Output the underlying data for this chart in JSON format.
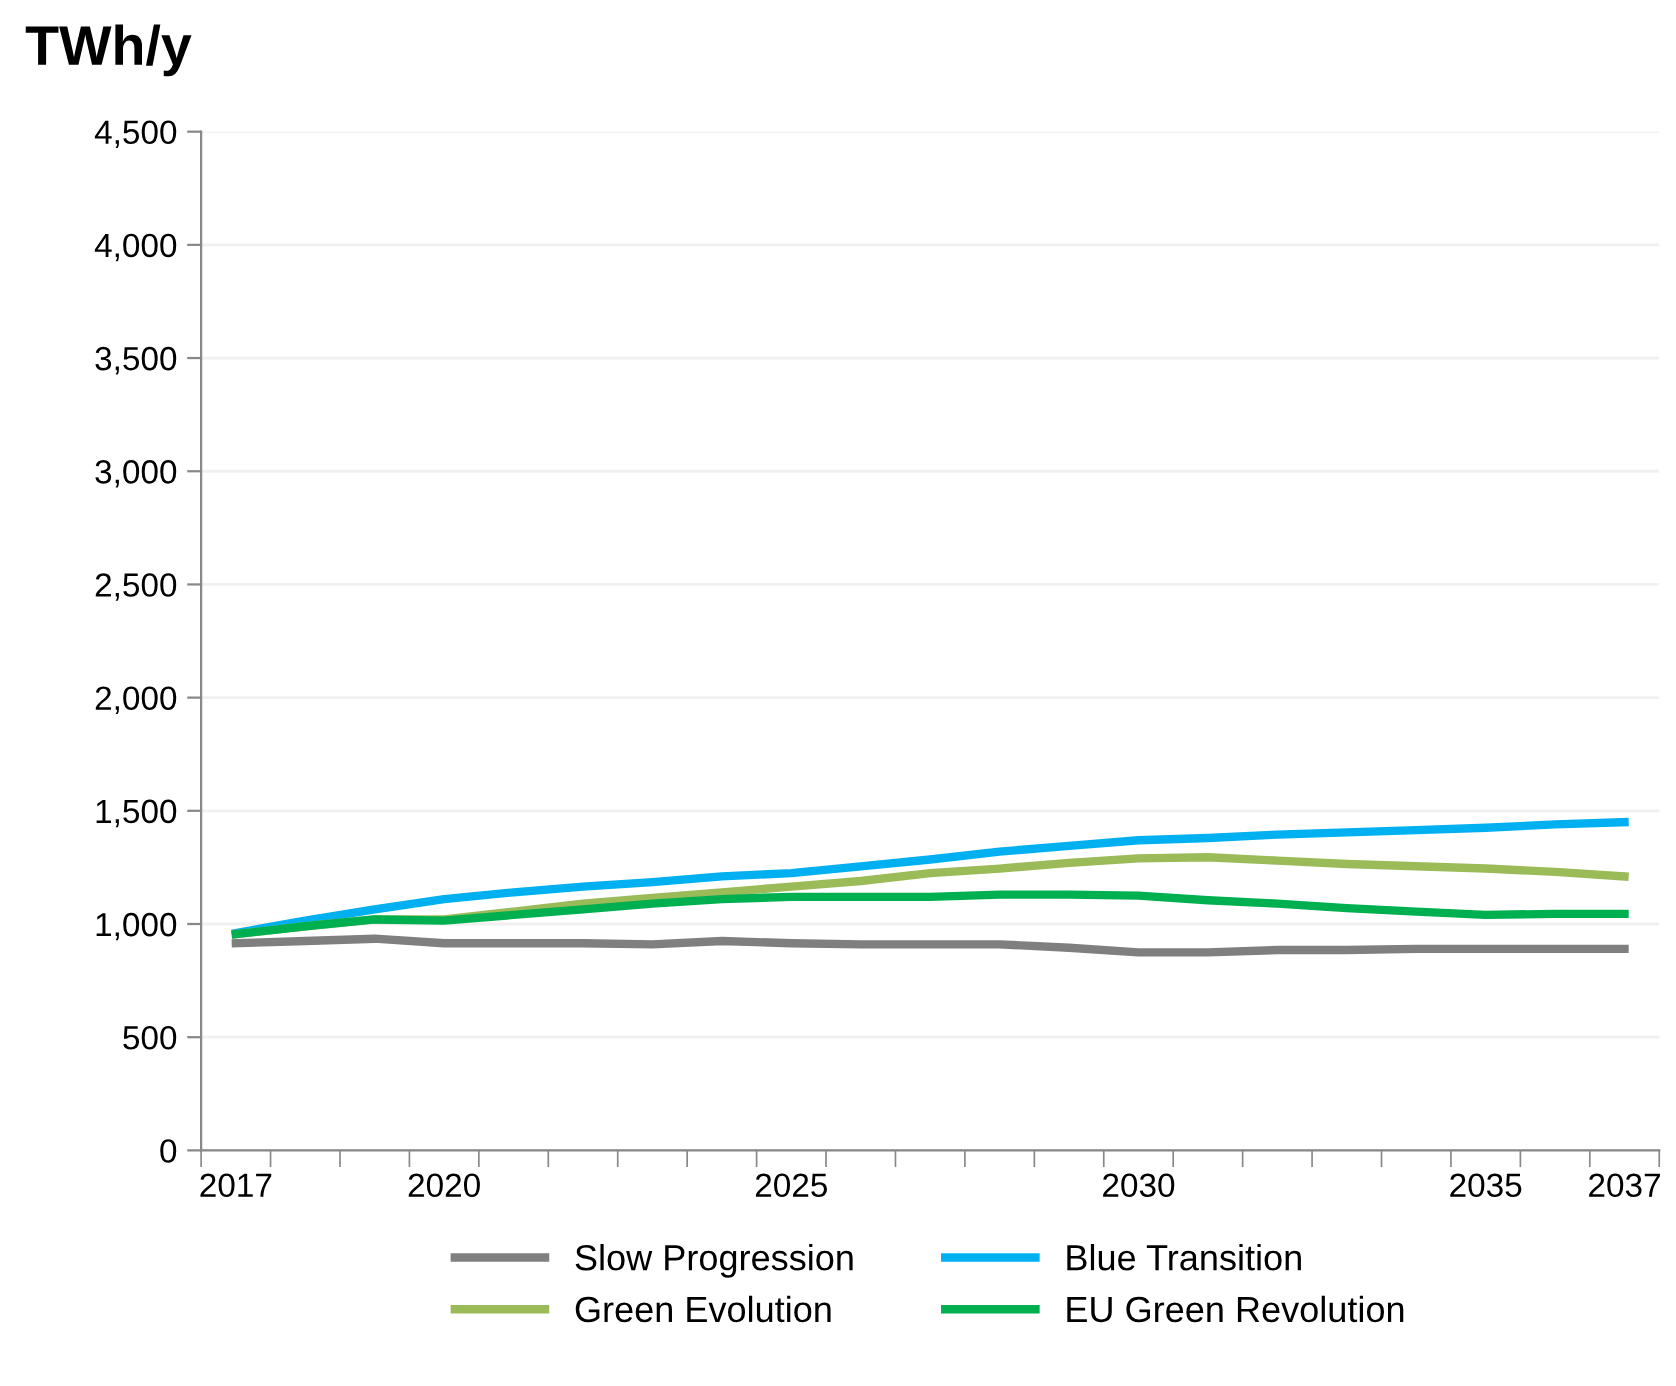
{
  "chart_data": {
    "type": "line",
    "ylabel": "TWh/y",
    "categories": [
      "2017",
      null,
      null,
      "2020",
      null,
      null,
      null,
      null,
      "2025",
      null,
      null,
      null,
      null,
      "2030",
      null,
      null,
      null,
      null,
      "2035",
      null,
      "2037"
    ],
    "series": [
      {
        "name": "Slow Progression",
        "color": "#7f7f7f",
        "values": [
          915,
          925,
          935,
          915,
          915,
          915,
          910,
          925,
          915,
          910,
          910,
          910,
          895,
          875,
          875,
          885,
          885,
          890,
          890,
          890,
          890
        ]
      },
      {
        "name": "Blue Transition",
        "color": "#00b0f0",
        "values": [
          960,
          1015,
          1065,
          1110,
          1140,
          1165,
          1185,
          1210,
          1225,
          1255,
          1285,
          1320,
          1345,
          1370,
          1380,
          1395,
          1405,
          1415,
          1425,
          1440,
          1450
        ]
      },
      {
        "name": "Green Evolution",
        "color": "#9bbb59",
        "values": [
          955,
          990,
          1020,
          1020,
          1055,
          1090,
          1115,
          1140,
          1165,
          1190,
          1225,
          1245,
          1270,
          1290,
          1295,
          1280,
          1265,
          1255,
          1245,
          1230,
          1210
        ]
      },
      {
        "name": "EU Green Revolution",
        "color": "#00b050",
        "values": [
          955,
          990,
          1020,
          1015,
          1040,
          1065,
          1090,
          1110,
          1120,
          1120,
          1120,
          1130,
          1130,
          1125,
          1105,
          1090,
          1070,
          1055,
          1040,
          1045,
          1045
        ]
      }
    ],
    "ylim": [
      0,
      4500
    ],
    "yticks": [
      {
        "value": 0,
        "label": "0"
      },
      {
        "value": 500,
        "label": "500"
      },
      {
        "value": 1000,
        "label": "1,000"
      },
      {
        "value": 1500,
        "label": "1,500"
      },
      {
        "value": 2000,
        "label": "2,000"
      },
      {
        "value": 2500,
        "label": "2,500"
      },
      {
        "value": 3000,
        "label": "3,000"
      },
      {
        "value": 3500,
        "label": "3,500"
      },
      {
        "value": 4000,
        "label": "4,000"
      },
      {
        "value": 4500,
        "label": "4,500"
      }
    ],
    "grid": "y",
    "legend": "bottom",
    "marker": "none",
    "line_style": "solid"
  }
}
